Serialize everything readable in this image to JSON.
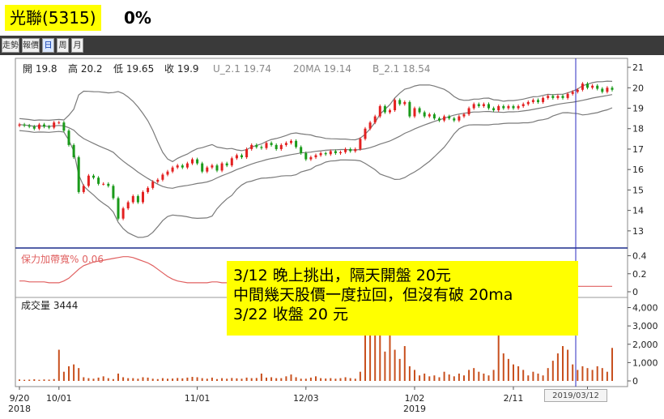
{
  "header": {
    "title": "光聯(5315)",
    "change": "0%"
  },
  "toolbar": {
    "tabs": [
      {
        "label": "走勢",
        "active": false
      },
      {
        "label": "報價",
        "active": false
      },
      {
        "label": "日",
        "active": true
      },
      {
        "label": "周",
        "active": false
      },
      {
        "label": "月",
        "active": false
      }
    ]
  },
  "annotation": {
    "lines": [
      "3/12 晚上挑出，隔天開盤 20元",
      "中間幾天股價一度拉回，但沒有破 20ma",
      "3/22 收盤 20 元"
    ]
  },
  "cursor_date": "2019/03/12",
  "colors": {
    "up": "#e32020",
    "down": "#1a9a1a",
    "volume": "#c8501e",
    "band": "#7a7a7a",
    "width_line": "#e06060",
    "cursor": "#2b2bc0",
    "highlight": "#ffff00"
  },
  "chart_data": [
    {
      "type": "candlestick",
      "panel": "price",
      "info": [
        {
          "label": "開",
          "value": "19.8"
        },
        {
          "label": "高",
          "value": "20.2"
        },
        {
          "label": "低",
          "value": "19.65"
        },
        {
          "label": "收",
          "value": "19.9"
        },
        {
          "label": "U_2.1",
          "value": "19.74"
        },
        {
          "label": "20MA",
          "value": "19.14"
        },
        {
          "label": "B_2.1",
          "value": "18.54"
        }
      ],
      "ylim": [
        12.4,
        21.2
      ],
      "y_ticks": [
        13,
        14,
        15,
        16,
        17,
        18,
        19,
        20,
        21
      ],
      "x_ticks": [
        {
          "i": 0,
          "label": "9/20",
          "sub": "2018"
        },
        {
          "i": 8,
          "label": "10/01",
          "sub": ""
        },
        {
          "i": 36,
          "label": "11/01",
          "sub": ""
        },
        {
          "i": 58,
          "label": "12/03",
          "sub": ""
        },
        {
          "i": 80,
          "label": "1/02",
          "sub": "2019"
        },
        {
          "i": 100,
          "label": "2/11",
          "sub": ""
        },
        {
          "i": 115,
          "label": "3/",
          "sub": ""
        }
      ],
      "close": [
        18.2,
        18.15,
        18.1,
        18.0,
        18.2,
        18.1,
        18.05,
        18.3,
        18.3,
        17.9,
        17.2,
        16.6,
        14.9,
        15.2,
        15.7,
        15.6,
        15.3,
        15.3,
        15.2,
        14.6,
        13.6,
        14.1,
        14.4,
        14.7,
        14.4,
        14.9,
        15.1,
        15.4,
        15.5,
        15.75,
        15.9,
        16.1,
        16.2,
        16.1,
        16.3,
        16.5,
        16.3,
        15.9,
        16.1,
        16.2,
        15.95,
        16.3,
        16.2,
        16.55,
        16.7,
        16.6,
        17.0,
        17.2,
        17.1,
        17.05,
        17.3,
        17.2,
        17.0,
        17.2,
        17.3,
        17.4,
        17.1,
        16.8,
        16.5,
        16.6,
        16.7,
        16.8,
        16.75,
        16.9,
        16.8,
        16.85,
        17.0,
        16.9,
        17.0,
        17.5,
        18.0,
        18.3,
        18.6,
        19.1,
        18.8,
        18.9,
        19.4,
        19.2,
        19.3,
        18.6,
        19.0,
        18.8,
        18.6,
        18.7,
        18.5,
        18.4,
        18.6,
        18.5,
        18.4,
        18.6,
        18.7,
        19.0,
        19.2,
        19.1,
        19.2,
        19.0,
        18.9,
        19.1,
        19.0,
        19.1,
        19.0,
        19.1,
        19.2,
        19.3,
        19.4,
        19.3,
        19.5,
        19.6,
        19.5,
        19.6,
        19.5,
        19.7,
        19.8,
        19.9,
        20.2,
        20.0,
        20.1,
        19.95,
        19.8,
        20.0,
        19.9
      ],
      "volume_ticks": [
        0,
        1000,
        2000,
        3000,
        4000
      ],
      "volume_label": "成交量",
      "volume_value": "3444",
      "volume": [
        80,
        60,
        70,
        90,
        60,
        80,
        70,
        100,
        1700,
        500,
        800,
        900,
        700,
        200,
        150,
        120,
        180,
        250,
        150,
        100,
        400,
        200,
        150,
        150,
        120,
        200,
        180,
        120,
        100,
        150,
        120,
        130,
        160,
        140,
        180,
        220,
        200,
        150,
        120,
        180,
        100,
        150,
        120,
        160,
        140,
        120,
        180,
        150,
        160,
        400,
        180,
        200,
        150,
        150,
        250,
        350,
        200,
        120,
        120,
        180,
        250,
        150,
        130,
        150,
        120,
        150,
        200,
        150,
        120,
        500,
        3000,
        2500,
        4000,
        2800,
        1600,
        2600,
        1700,
        1200,
        1900,
        800,
        600,
        300,
        400,
        250,
        300,
        200,
        500,
        350,
        250,
        400,
        300,
        600,
        700,
        500,
        400,
        300,
        600,
        2600,
        1500,
        1200,
        900,
        800,
        600,
        300,
        500,
        400,
        300,
        700,
        1100,
        1500,
        1900,
        1700,
        900,
        600,
        800,
        700,
        600,
        800,
        700,
        500,
        1800
      ],
      "width_label": "保力加帶寬%",
      "width_value": "0.06",
      "width_ticks": [
        0,
        0.2,
        0.4
      ],
      "bandwidth": [
        0.12,
        0.12,
        0.11,
        0.11,
        0.11,
        0.11,
        0.1,
        0.1,
        0.1,
        0.12,
        0.15,
        0.2,
        0.25,
        0.29,
        0.31,
        0.33,
        0.34,
        0.35,
        0.36,
        0.37,
        0.38,
        0.39,
        0.39,
        0.38,
        0.36,
        0.34,
        0.32,
        0.29,
        0.25,
        0.21,
        0.17,
        0.14,
        0.12,
        0.11,
        0.1,
        0.1,
        0.1,
        0.1,
        0.1,
        0.11,
        0.11,
        0.1,
        0.1,
        0.1,
        0.1,
        0.1,
        0.1,
        0.1,
        0.1,
        0.1,
        0.1,
        0.1,
        0.1,
        0.1,
        0.1,
        0.1,
        0.1,
        0.1,
        0.1,
        0.1,
        0.1,
        0.1,
        0.09,
        0.09,
        0.09,
        0.08,
        0.08,
        0.08,
        0.08,
        0.08,
        0.09,
        0.1,
        0.12,
        0.14,
        0.16,
        0.18,
        0.19,
        0.2,
        0.2,
        0.2,
        0.2,
        0.2,
        0.19,
        0.18,
        0.17,
        0.16,
        0.15,
        0.14,
        0.13,
        0.12,
        0.11,
        0.1,
        0.09,
        0.08,
        0.08,
        0.07,
        0.07,
        0.06,
        0.06,
        0.06,
        0.06,
        0.06,
        0.06,
        0.06,
        0.06,
        0.06,
        0.06,
        0.06,
        0.06,
        0.06,
        0.06,
        0.06,
        0.06,
        0.06,
        0.06,
        0.06,
        0.06,
        0.06,
        0.06,
        0.06,
        0.06
      ]
    }
  ]
}
